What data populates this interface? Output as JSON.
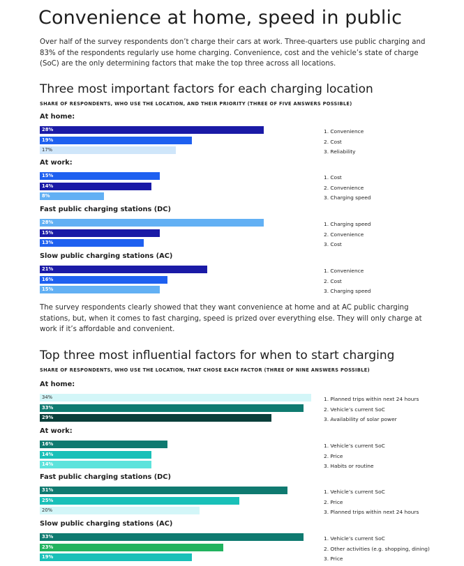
{
  "title": "Convenience at home, speed in public",
  "intro": "Over half of the survey respondents don’t charge their cars at work. Three-quarters use public charging and 83% of the respondents regularly use home charging. Convenience, cost and the vehicle’s state of charge (SoC) are the only determining factors that make the top three across all locations.",
  "middle_text": "The survey respondents clearly showed that they want convenience at home and at AC public charging stations, but, when it comes to fast charging, speed is prized over everything else. They will only charge at work if it’s affordable and convenient.",
  "chart_data": [
    {
      "type": "bar",
      "orientation": "horizontal",
      "title": "Three most important factors for each charging location",
      "subtitle": "SHARE OF RESPONDENTS, WHO USE THE LOCATION, AND THEIR PRIORITY (THREE OF FIVE ANSWERS POSSIBLE)",
      "unit": "%",
      "xlim": [
        0,
        35
      ],
      "grid": false,
      "groups": [
        {
          "name": "At home:",
          "bars": [
            {
              "label": "28%",
              "value": 28,
              "factor": "1. Convenience",
              "color": "#1a1aa6"
            },
            {
              "label": "19%",
              "value": 19,
              "factor": "2. Cost",
              "color": "#1e60f0"
            },
            {
              "label": "17%",
              "value": 17,
              "factor": "3. Reliability",
              "color": "#cfe6fa"
            }
          ]
        },
        {
          "name": "At work:",
          "bars": [
            {
              "label": "15%",
              "value": 15,
              "factor": "1. Cost",
              "color": "#1e60f0"
            },
            {
              "label": "14%",
              "value": 14,
              "factor": "2. Convenience",
              "color": "#1a1aa6"
            },
            {
              "label": "8%",
              "value": 8,
              "factor": "3. Charging speed",
              "color": "#62b0f4"
            }
          ]
        },
        {
          "name": "Fast public charging stations (DC)",
          "bars": [
            {
              "label": "28%",
              "value": 28,
              "factor": "1. Charging speed",
              "color": "#62b0f4"
            },
            {
              "label": "15%",
              "value": 15,
              "factor": "2. Convenience",
              "color": "#1a1aa6"
            },
            {
              "label": "13%",
              "value": 13,
              "factor": "3. Cost",
              "color": "#1e60f0"
            }
          ]
        },
        {
          "name": "Slow public charging stations (AC)",
          "bars": [
            {
              "label": "21%",
              "value": 21,
              "factor": "1. Convenience",
              "color": "#1a1aa6"
            },
            {
              "label": "16%",
              "value": 16,
              "factor": "2. Cost",
              "color": "#1e60f0"
            },
            {
              "label": "15%",
              "value": 15,
              "factor": "3. Charging speed",
              "color": "#62b0f4"
            }
          ]
        }
      ]
    },
    {
      "type": "bar",
      "orientation": "horizontal",
      "title": "Top three most influential factors for when to start charging",
      "subtitle": "SHARE OF RESPONDENTS, WHO USE THE LOCATION, THAT CHOSE EACH FACTOR (THREE OF NINE ANSWERS POSSIBLE)",
      "unit": "%",
      "xlim": [
        0,
        35
      ],
      "grid": false,
      "groups": [
        {
          "name": "At home:",
          "bars": [
            {
              "label": "34%",
              "value": 34,
              "factor": "1. Planned trips within next 24 hours",
              "color": "#d3f6f8"
            },
            {
              "label": "33%",
              "value": 33,
              "factor": "2. Vehicle’s current SoC",
              "color": "#0f7a70"
            },
            {
              "label": "29%",
              "value": 29,
              "factor": "3. Availability of solar power",
              "color": "#0a3f3a"
            }
          ]
        },
        {
          "name": "At work:",
          "bars": [
            {
              "label": "16%",
              "value": 16,
              "factor": "1. Vehicle’s current SoC",
              "color": "#0f7a70"
            },
            {
              "label": "14%",
              "value": 14,
              "factor": "2. Price",
              "color": "#19c0b8"
            },
            {
              "label": "14%",
              "value": 14,
              "factor": "3. Habits or routine",
              "color": "#5de3dc"
            }
          ]
        },
        {
          "name": "Fast public charging stations (DC)",
          "bars": [
            {
              "label": "31%",
              "value": 31,
              "factor": "1. Vehicle’s current SoC",
              "color": "#0f7a70"
            },
            {
              "label": "25%",
              "value": 25,
              "factor": "2. Price",
              "color": "#19c0b8"
            },
            {
              "label": "20%",
              "value": 20,
              "factor": "3. Planned trips within next 24 hours",
              "color": "#d3f6f8"
            }
          ]
        },
        {
          "name": "Slow public charging stations (AC)",
          "bars": [
            {
              "label": "33%",
              "value": 33,
              "factor": "1. Vehicle’s current SoC",
              "color": "#0f7a70"
            },
            {
              "label": "23%",
              "value": 23,
              "factor": "2. Other activities (e.g. shopping, dining)",
              "color": "#21b35f"
            },
            {
              "label": "19%",
              "value": 19,
              "factor": "3. Price",
              "color": "#19c0b8"
            }
          ]
        }
      ]
    }
  ]
}
